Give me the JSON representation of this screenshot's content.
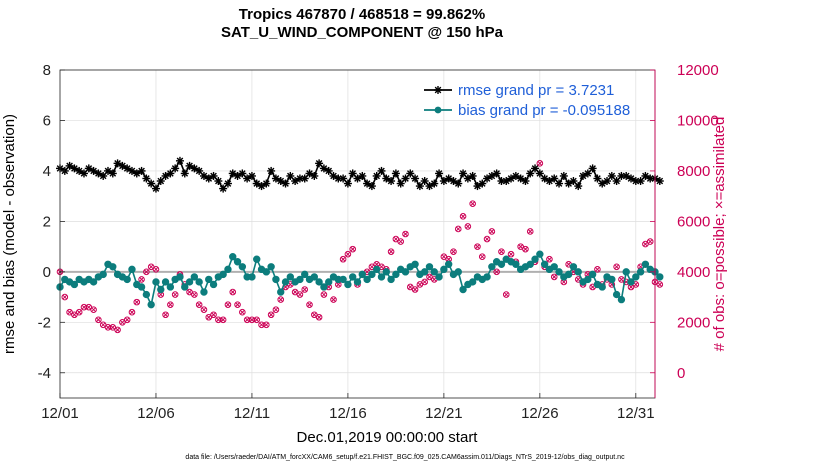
{
  "chart_data": {
    "type": "line",
    "title": "Tropics 467870 / 468518 = 99.862%",
    "subtitle": "SAT_U_WIND_COMPONENT @ 150 hPa",
    "xlabel": "Dec.01,2019 00:00:00 start",
    "ylabel": "rmse and bias (model - observation)",
    "y2label": "# of obs: o=possible; ×=assimilated",
    "xlim": [
      0,
      31
    ],
    "ylim": [
      -5,
      8
    ],
    "y2lim": [
      -1000,
      12000
    ],
    "x_ticks": [
      0,
      5,
      10,
      15,
      20,
      25,
      30
    ],
    "x_tick_labels": [
      "12/01",
      "12/06",
      "12/11",
      "12/16",
      "12/21",
      "12/26",
      "12/31"
    ],
    "y_ticks": [
      8,
      6,
      4,
      2,
      0,
      -2,
      -4
    ],
    "y_tick_labels": [
      "8",
      "6",
      "4",
      "2",
      "0",
      "-2",
      "-4"
    ],
    "y2_ticks": [
      12000,
      10000,
      8000,
      6000,
      4000,
      2000,
      0
    ],
    "y2_tick_labels": [
      "12000",
      "10000",
      "8000",
      "6000",
      "4000",
      "2000",
      "0"
    ],
    "zero_line": 0,
    "legend_position": "top-right",
    "legend": [
      "rmse grand pr = 3.7231",
      "bias grand pr = -0.095188"
    ],
    "x_step_days": 0.25,
    "series": [
      {
        "name": "rmse grand pr = 3.7231",
        "color": "#000000",
        "marker": "star",
        "axis": "left",
        "values": [
          4.1,
          4.0,
          4.2,
          4.1,
          4.0,
          3.9,
          4.1,
          4.0,
          3.9,
          3.8,
          4.0,
          3.9,
          4.3,
          4.2,
          4.1,
          4.0,
          3.9,
          4.0,
          3.7,
          3.5,
          3.3,
          3.6,
          3.8,
          3.9,
          4.1,
          4.4,
          3.9,
          4.2,
          4.1,
          4.0,
          3.8,
          3.7,
          3.8,
          3.6,
          3.3,
          3.5,
          3.9,
          3.8,
          3.9,
          3.7,
          3.8,
          3.5,
          3.4,
          3.5,
          4.0,
          3.7,
          3.6,
          3.5,
          3.8,
          3.6,
          3.7,
          3.7,
          3.9,
          3.8,
          4.3,
          4.1,
          4.0,
          3.8,
          3.7,
          3.7,
          3.5,
          3.9,
          3.7,
          3.8,
          3.5,
          3.4,
          3.8,
          4.0,
          3.7,
          3.6,
          3.9,
          3.5,
          3.7,
          3.9,
          3.7,
          3.4,
          3.6,
          3.4,
          3.5,
          3.9,
          3.6,
          3.7,
          3.6,
          3.5,
          3.9,
          3.7,
          3.8,
          3.4,
          3.5,
          3.7,
          3.8,
          3.9,
          3.6,
          3.6,
          3.7,
          3.8,
          3.7,
          3.6,
          3.9,
          4.1,
          3.9,
          3.7,
          3.6,
          3.7,
          3.5,
          3.8,
          3.5,
          3.6,
          3.4,
          3.8,
          3.9,
          4.1,
          3.7,
          3.5,
          3.6,
          3.8,
          3.6,
          3.8,
          3.8,
          3.7,
          3.6,
          3.6,
          3.8,
          3.7,
          3.7,
          3.6
        ]
      },
      {
        "name": "bias grand pr = -0.095188",
        "color": "#0c7d7d",
        "marker": "circle",
        "axis": "left",
        "values": [
          -0.6,
          -0.3,
          -0.4,
          -0.5,
          -0.3,
          -0.4,
          -0.3,
          -0.4,
          -0.2,
          -0.1,
          0.3,
          0.2,
          -0.1,
          -0.2,
          -0.3,
          0.1,
          -0.5,
          -0.6,
          -0.9,
          -1.3,
          -0.4,
          -0.7,
          -0.4,
          -0.6,
          -0.3,
          -0.2,
          -0.6,
          -0.4,
          -0.2,
          -0.4,
          -0.8,
          -0.3,
          -0.5,
          -0.2,
          -0.1,
          0.1,
          0.6,
          0.4,
          0.2,
          -0.2,
          -0.2,
          0.5,
          0.1,
          0.0,
          0.2,
          -0.3,
          -0.8,
          -0.4,
          -0.2,
          -0.4,
          -0.3,
          -0.1,
          -0.3,
          -0.2,
          -0.4,
          -0.6,
          -0.4,
          -0.2,
          -0.3,
          -0.3,
          -0.5,
          -0.2,
          -0.4,
          -0.1,
          -0.3,
          -0.1,
          0.1,
          -0.2,
          0.0,
          -0.3,
          -0.1,
          0.1,
          0.0,
          0.2,
          0.3,
          -0.1,
          0.0,
          0.2,
          0.0,
          -0.2,
          0.1,
          0.3,
          -0.1,
          0.0,
          -0.7,
          -0.5,
          -0.4,
          -0.2,
          -0.3,
          -0.2,
          0.2,
          0.4,
          0.3,
          0.5,
          0.4,
          0.3,
          0.1,
          0.2,
          0.3,
          0.5,
          0.7,
          0.3,
          0.1,
          0.2,
          0.0,
          -0.2,
          -0.1,
          0.2,
          0.0,
          -0.4,
          -0.3,
          -0.1,
          -0.5,
          -0.6,
          -0.2,
          -0.3,
          -0.9,
          -1.1,
          0.0,
          -0.4,
          -0.2,
          0.0,
          0.3,
          0.1,
          0.0,
          -0.2
        ]
      },
      {
        "name": "# of obs (assimilated)",
        "color": "#cc0055",
        "marker": "circled-x",
        "axis": "right",
        "values": [
          4000,
          3000,
          2400,
          2300,
          2400,
          2600,
          2600,
          2500,
          2100,
          1900,
          1800,
          1800,
          1700,
          2000,
          2100,
          2400,
          2800,
          3700,
          4000,
          4200,
          4100,
          3100,
          2300,
          2700,
          3100,
          3900,
          3500,
          3200,
          3100,
          2700,
          2500,
          2200,
          2300,
          2100,
          2100,
          2700,
          3200,
          2700,
          2400,
          2100,
          2100,
          2100,
          1900,
          1900,
          2300,
          2500,
          2900,
          3400,
          3500,
          3200,
          3100,
          3300,
          2700,
          2300,
          2200,
          3100,
          3400,
          2900,
          3500,
          4500,
          4700,
          4900,
          3500,
          3900,
          4000,
          4200,
          4300,
          4200,
          4100,
          4800,
          5300,
          5200,
          5500,
          3400,
          3300,
          3500,
          3600,
          3800,
          3700,
          3800,
          4600,
          4500,
          4800,
          5700,
          6200,
          5800,
          6700,
          5000,
          4600,
          5300,
          5600,
          4000,
          4800,
          3100,
          4700,
          4400,
          5000,
          4900,
          5600,
          4400,
          8300,
          4200,
          4500,
          3800,
          4000,
          3600,
          4300,
          4000,
          3700,
          3500,
          3900,
          3400,
          4100,
          3500,
          3700,
          3500,
          4200,
          3700,
          3600,
          3400,
          3500,
          4200,
          5100,
          5200,
          3600,
          3500
        ]
      }
    ]
  },
  "footer": "data file: /Users/raeder/DAI/ATM_forcXX/CAM6_setup/f.e21.FHIST_BGC.f09_025.CAM6assim.011/Diags_NTrS_2019-12/obs_diag_output.nc"
}
